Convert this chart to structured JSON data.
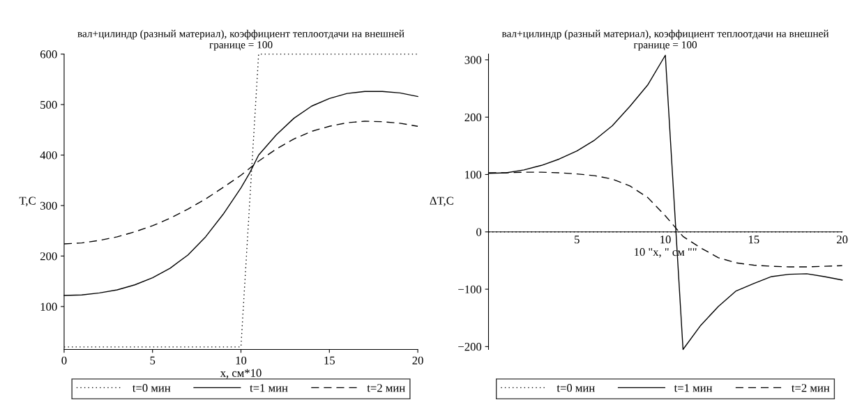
{
  "chart_data": [
    {
      "type": "line",
      "title": "вал+цилиндр (разный материал), коэффициент теплоотдачи на внешней границе = 100",
      "xlabel": "x, см*10",
      "ylabel": "T,C",
      "xlim": [
        0,
        20
      ],
      "ylim": [
        15,
        600
      ],
      "xticks": [
        0,
        5,
        10,
        15,
        20
      ],
      "yticks": [
        100,
        200,
        300,
        400,
        500,
        600
      ],
      "grid": false,
      "legend": "bottom",
      "marker": "none",
      "series": [
        {
          "name": "t=0 мин",
          "color": "#000000",
          "line_style": "dotted",
          "x": [
            0,
            10,
            11,
            20
          ],
          "values": [
            20,
            20,
            600,
            600
          ]
        },
        {
          "name": "t=1 мин",
          "color": "#000000",
          "line_style": "solid",
          "x": [
            0,
            1,
            2,
            3,
            4,
            5,
            6,
            7,
            8,
            9,
            10,
            10.5,
            11,
            12,
            13,
            14,
            15,
            16,
            17,
            18,
            19,
            20
          ],
          "values": [
            122,
            123,
            127,
            133,
            143,
            157,
            176,
            202,
            238,
            283,
            335,
            365,
            400,
            440,
            473,
            497,
            512,
            522,
            526,
            526,
            523,
            516
          ]
        },
        {
          "name": "t=2 мин",
          "color": "#000000",
          "line_style": "dashed",
          "x": [
            0,
            1,
            2,
            3,
            4,
            5,
            6,
            7,
            8,
            9,
            10,
            11,
            12,
            13,
            14,
            15,
            16,
            17,
            18,
            19,
            20
          ],
          "values": [
            224,
            226,
            231,
            238,
            248,
            260,
            275,
            293,
            313,
            336,
            360,
            388,
            412,
            432,
            447,
            457,
            464,
            467,
            466,
            463,
            457
          ]
        }
      ]
    },
    {
      "type": "line",
      "title": "вал+цилиндр (разный материал), коэффициент теплоотдачи на внешней границе = 100",
      "xlabel": "10 \"x, \" см \"\"",
      "ylabel": "ΔT,C",
      "xlim": [
        0,
        20
      ],
      "ylim": [
        -205,
        310
      ],
      "xticks": [
        5,
        10,
        15,
        20
      ],
      "yticks": [
        {
          "value": -200,
          "label": "−200"
        },
        {
          "value": -100,
          "label": "−100"
        },
        0,
        100,
        200,
        300
      ],
      "grid": false,
      "legend": "bottom",
      "marker": "none",
      "series": [
        {
          "name": "t=0 мин",
          "color": "#000000",
          "line_style": "dotted",
          "x": [
            0,
            20
          ],
          "values": [
            0,
            0
          ]
        },
        {
          "name": "t=1 мин",
          "color": "#000000",
          "line_style": "solid",
          "x": [
            0,
            1,
            2,
            3,
            4,
            5,
            6,
            7,
            8,
            9,
            10,
            11,
            12,
            13,
            14,
            15,
            16,
            17,
            18,
            19,
            20
          ],
          "values": [
            102,
            103,
            108,
            116,
            127,
            141,
            160,
            185,
            219,
            256,
            308,
            -205,
            -163,
            -130,
            -103,
            -90,
            -78,
            -74,
            -73,
            -78,
            -84
          ]
        },
        {
          "name": "t=2 мин",
          "color": "#000000",
          "line_style": "dashed",
          "x": [
            0,
            1,
            2,
            3,
            4,
            5,
            6,
            7,
            8,
            9,
            10,
            11,
            12,
            13,
            14,
            15,
            16,
            17,
            18,
            19,
            20
          ],
          "values": [
            103,
            103,
            104,
            104,
            103,
            101,
            98,
            92,
            80,
            60,
            28,
            -8,
            -28,
            -45,
            -54,
            -58,
            -60,
            -61,
            -61,
            -60,
            -59
          ]
        }
      ]
    }
  ]
}
